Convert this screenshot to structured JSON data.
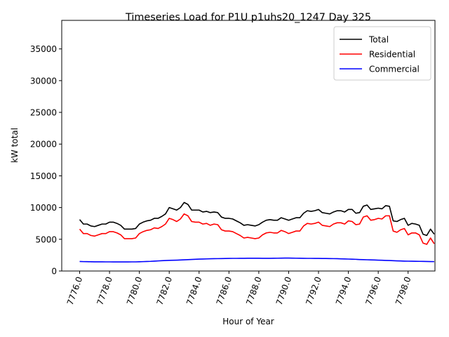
{
  "chart_data": {
    "type": "line",
    "title": "Timeseries Load for P1U p1uhs20_1247  Day 325",
    "xlabel": "Hour of Year",
    "ylabel": "kW total",
    "xlim": [
      7774.8,
      7799.8
    ],
    "ylim": [
      0,
      39500
    ],
    "xticks": [
      7776.0,
      7778.0,
      7780.0,
      7782.0,
      7784.0,
      7786.0,
      7788.0,
      7790.0,
      7792.0,
      7794.0,
      7796.0,
      7798.0
    ],
    "xtick_labels": [
      "7776.0",
      "7778.0",
      "7780.0",
      "7782.0",
      "7784.0",
      "7786.0",
      "7788.0",
      "7790.0",
      "7792.0",
      "7794.0",
      "7796.0",
      "7798.0"
    ],
    "yticks": [
      0,
      5000,
      10000,
      15000,
      20000,
      25000,
      30000,
      35000
    ],
    "ytick_labels": [
      "0",
      "5000",
      "10000",
      "15000",
      "20000",
      "25000",
      "30000",
      "35000"
    ],
    "grid": false,
    "legend_position": "top-right",
    "x_start": 7776.0,
    "x_step": 0.25,
    "series": [
      {
        "name": "Total",
        "color": "#000000",
        "values": [
          8100,
          7400,
          7400,
          7100,
          7000,
          7200,
          7400,
          7400,
          7700,
          7700,
          7500,
          7200,
          6600,
          6600,
          6600,
          6700,
          7400,
          7700,
          7900,
          8000,
          8300,
          8300,
          8600,
          9000,
          10000,
          9800,
          9600,
          10000,
          10800,
          10500,
          9600,
          9600,
          9600,
          9300,
          9400,
          9200,
          9300,
          9200,
          8500,
          8300,
          8300,
          8200,
          7900,
          7600,
          7200,
          7300,
          7200,
          7100,
          7300,
          7700,
          8000,
          8100,
          8000,
          8000,
          8400,
          8200,
          8000,
          8200,
          8400,
          8400,
          9100,
          9500,
          9400,
          9500,
          9700,
          9200,
          9100,
          9000,
          9300,
          9500,
          9500,
          9300,
          9700,
          9700,
          9100,
          9200,
          10200,
          10400,
          9700,
          9800,
          9900,
          9800,
          10300,
          10200,
          7900,
          7800,
          8100,
          8300,
          7200,
          7500,
          7400,
          7200,
          5800,
          5600,
          6600,
          5800
        ]
      },
      {
        "name": "Residential",
        "color": "#ff0000",
        "values": [
          6600,
          5900,
          5900,
          5600,
          5500,
          5700,
          5900,
          5900,
          6200,
          6200,
          6000,
          5700,
          5100,
          5100,
          5100,
          5200,
          5900,
          6200,
          6400,
          6500,
          6800,
          6700,
          7000,
          7400,
          8300,
          8100,
          7800,
          8200,
          9000,
          8700,
          7800,
          7700,
          7700,
          7400,
          7500,
          7200,
          7400,
          7300,
          6500,
          6300,
          6300,
          6200,
          5900,
          5600,
          5200,
          5300,
          5200,
          5100,
          5200,
          5700,
          6000,
          6100,
          6000,
          6000,
          6400,
          6200,
          5900,
          6100,
          6300,
          6300,
          7100,
          7500,
          7400,
          7500,
          7700,
          7200,
          7100,
          7000,
          7400,
          7600,
          7600,
          7400,
          7900,
          7800,
          7300,
          7400,
          8500,
          8700,
          8000,
          8100,
          8300,
          8200,
          8700,
          8700,
          6300,
          6100,
          6500,
          6700,
          5700,
          6000,
          6000,
          5700,
          4400,
          4200,
          5200,
          4300
        ]
      },
      {
        "name": "Commercial",
        "color": "#0000ff",
        "values": [
          1500,
          1480,
          1470,
          1460,
          1450,
          1450,
          1450,
          1440,
          1440,
          1430,
          1430,
          1430,
          1430,
          1430,
          1440,
          1440,
          1460,
          1480,
          1500,
          1520,
          1560,
          1590,
          1620,
          1650,
          1680,
          1700,
          1710,
          1730,
          1760,
          1790,
          1820,
          1850,
          1870,
          1890,
          1910,
          1930,
          1940,
          1950,
          1960,
          1970,
          1980,
          1990,
          1990,
          2000,
          2000,
          2010,
          2010,
          2010,
          2010,
          2000,
          2000,
          2000,
          2010,
          2020,
          2030,
          2040,
          2040,
          2030,
          2020,
          2010,
          2000,
          1990,
          1990,
          1980,
          1980,
          1970,
          1970,
          1960,
          1950,
          1940,
          1920,
          1900,
          1880,
          1860,
          1840,
          1810,
          1790,
          1770,
          1750,
          1730,
          1710,
          1690,
          1670,
          1650,
          1620,
          1600,
          1580,
          1560,
          1550,
          1540,
          1530,
          1520,
          1510,
          1500,
          1490,
          1480
        ]
      }
    ]
  }
}
